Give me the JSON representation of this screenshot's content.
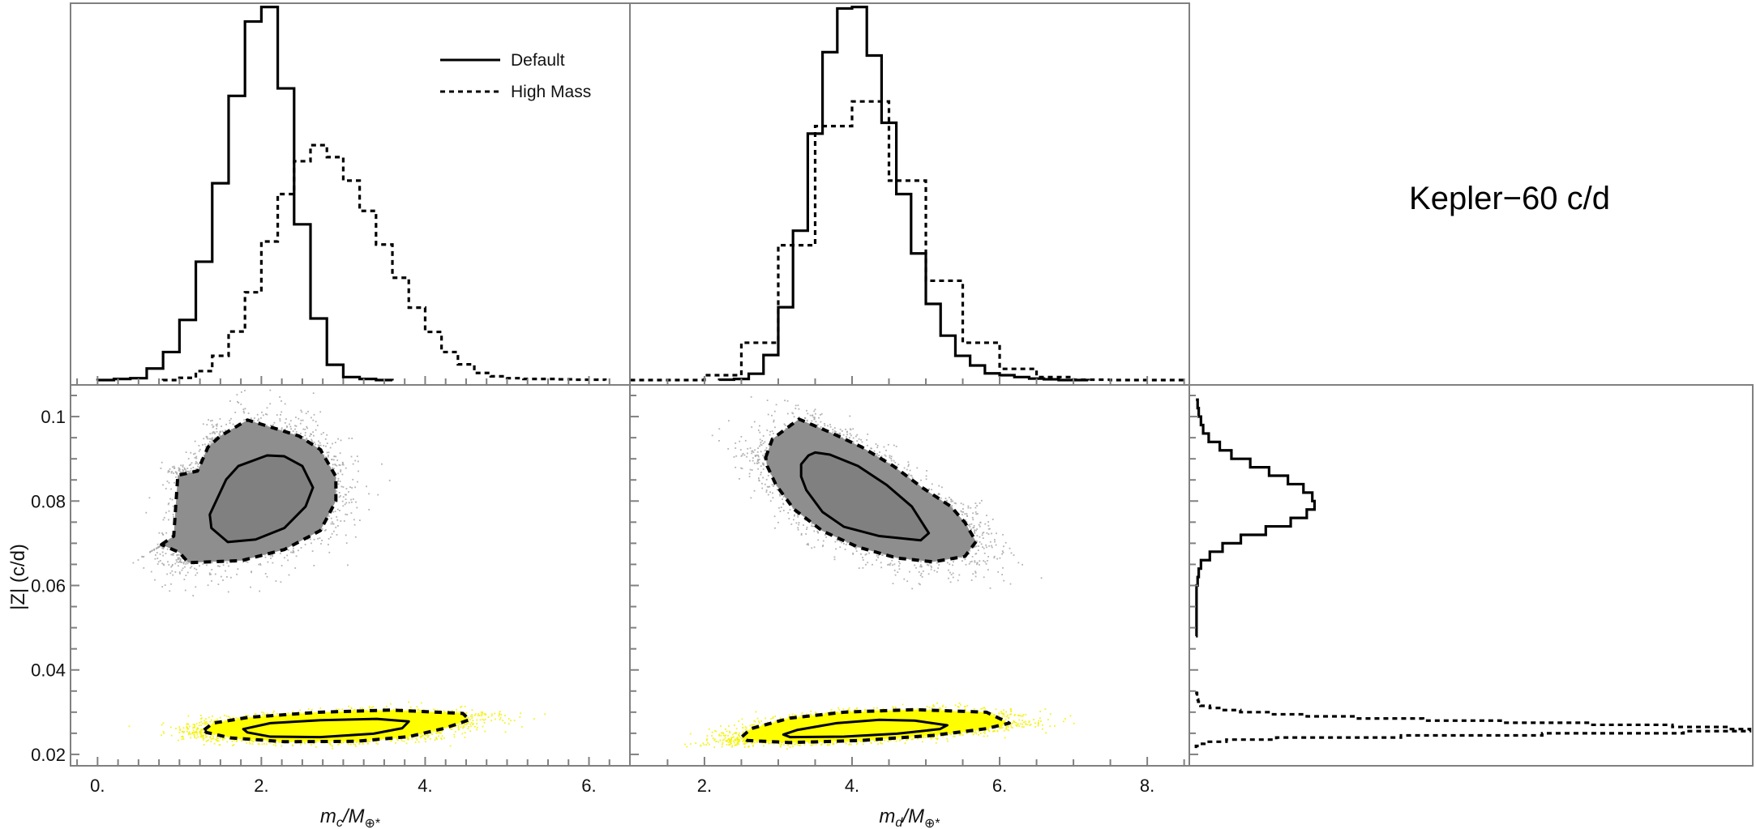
{
  "title": "Kepler−60 c/d",
  "legend": {
    "placement": "top-right of first histogram",
    "entries": [
      {
        "label": "Default",
        "style": "solid"
      },
      {
        "label": "High Mass",
        "style": "dotted"
      }
    ]
  },
  "axes": {
    "x_mc": {
      "parts": [
        "m",
        "c",
        "/M",
        "⊕*"
      ],
      "lim": [
        -0.33,
        6.5
      ],
      "ticks": [
        0,
        2,
        4,
        6
      ],
      "tick_labels": [
        "0.",
        "2.",
        "4.",
        "6."
      ],
      "minor_step": 0.25
    },
    "x_md": {
      "parts": [
        "m",
        "d",
        "/M",
        "⊕*"
      ],
      "lim": [
        0.99,
        8.57
      ],
      "ticks": [
        2,
        4,
        6,
        8
      ],
      "tick_labels": [
        "2.",
        "4.",
        "6.",
        "8."
      ],
      "minor_step": 0.5
    },
    "y_z": {
      "label": "|Z| (c/d)",
      "lim": [
        0.0173,
        0.1075
      ],
      "ticks": [
        0.02,
        0.04,
        0.06,
        0.08,
        0.1
      ],
      "tick_labels": [
        "0.02",
        "0.04",
        "0.06",
        "0.08",
        "0.1"
      ],
      "minor_step": 0.005
    },
    "hist_density_lim": [
      -0.012,
      1.01
    ],
    "z_hist_density_lim": [
      -0.012,
      1.005
    ]
  },
  "colors": {
    "default_cloud": "#808080",
    "high_mass_cloud": "#ffff00",
    "line": "#000000",
    "frame": "#808080"
  },
  "chart_data": [
    {
      "type": "histogram",
      "id": "mc-hist",
      "x_axis": "x_mc",
      "grid": false,
      "series": [
        {
          "name": "Default",
          "bin_start": 0.0,
          "bin_width": 0.2,
          "values": [
            0.001,
            0.004,
            0.006,
            0.032,
            0.076,
            0.162,
            0.318,
            0.528,
            0.762,
            0.961,
            1.0,
            0.782,
            0.418,
            0.166,
            0.042,
            0.009,
            0.004,
            0.001
          ]
        },
        {
          "name": "High Mass",
          "bin_start": 0.8,
          "bin_width": 0.2,
          "values": [
            0.001,
            0.007,
            0.025,
            0.066,
            0.131,
            0.236,
            0.372,
            0.499,
            0.587,
            0.63,
            0.598,
            0.535,
            0.454,
            0.364,
            0.275,
            0.195,
            0.13,
            0.076,
            0.043,
            0.02,
            0.011,
            0.006,
            0.004,
            0.004,
            0.003,
            0.002,
            0.002
          ]
        }
      ]
    },
    {
      "type": "histogram",
      "id": "md-hist",
      "x_axis": "x_md",
      "grid": false,
      "series": [
        {
          "name": "Default",
          "bin_start": 2.2,
          "bin_width": 0.2,
          "values": [
            0.002,
            0.004,
            0.018,
            0.068,
            0.196,
            0.401,
            0.661,
            0.879,
            0.996,
            1.0,
            0.87,
            0.69,
            0.499,
            0.34,
            0.205,
            0.12,
            0.066,
            0.04,
            0.019,
            0.014,
            0.009,
            0.005,
            0.003,
            0.001,
            0.001
          ]
        },
        {
          "name": "High Mass",
          "bin_start": 1.0,
          "bin_width": 0.5,
          "values": [
            0.001,
            0.001,
            0.014,
            0.101,
            0.362,
            0.681,
            0.747,
            0.535,
            0.267,
            0.101,
            0.031,
            0.009,
            0.002,
            0.001,
            0.001
          ]
        }
      ]
    },
    {
      "type": "scatter",
      "id": "mc-vs-z",
      "x_axis": "x_mc",
      "y_axis": "y_z",
      "grid": false,
      "series": [
        {
          "name": "Default",
          "color": "#808080",
          "inner_contour": [
            [
              1.37,
              0.0768
            ],
            [
              1.57,
              0.0851
            ],
            [
              1.72,
              0.0883
            ],
            [
              2.07,
              0.0908
            ],
            [
              2.28,
              0.0906
            ],
            [
              2.5,
              0.0883
            ],
            [
              2.63,
              0.0832
            ],
            [
              2.54,
              0.0787
            ],
            [
              2.28,
              0.0736
            ],
            [
              1.93,
              0.0709
            ],
            [
              1.59,
              0.0703
            ],
            [
              1.39,
              0.0736
            ]
          ],
          "outer_contour": [
            [
              0.78,
              0.0697
            ],
            [
              0.93,
              0.0717
            ],
            [
              0.98,
              0.0861
            ],
            [
              1.22,
              0.0871
            ],
            [
              1.35,
              0.0928
            ],
            [
              1.5,
              0.0954
            ],
            [
              1.83,
              0.0992
            ],
            [
              2.2,
              0.097
            ],
            [
              2.46,
              0.0954
            ],
            [
              2.72,
              0.0922
            ],
            [
              2.91,
              0.0858
            ],
            [
              2.91,
              0.08
            ],
            [
              2.72,
              0.073
            ],
            [
              2.28,
              0.0685
            ],
            [
              1.76,
              0.0659
            ],
            [
              1.11,
              0.0654
            ],
            [
              1.0,
              0.0678
            ]
          ]
        },
        {
          "name": "High Mass",
          "color": "#ffff00",
          "inner_contour": [
            [
              1.78,
              0.026
            ],
            [
              2.11,
              0.0274
            ],
            [
              2.72,
              0.0281
            ],
            [
              3.41,
              0.0284
            ],
            [
              3.8,
              0.0278
            ],
            [
              3.72,
              0.0262
            ],
            [
              3.37,
              0.0249
            ],
            [
              2.72,
              0.0241
            ],
            [
              2.11,
              0.0242
            ],
            [
              1.83,
              0.0252
            ]
          ],
          "outer_contour": [
            [
              1.3,
              0.0258
            ],
            [
              1.41,
              0.0274
            ],
            [
              1.85,
              0.0288
            ],
            [
              2.72,
              0.03
            ],
            [
              3.59,
              0.0305
            ],
            [
              4.46,
              0.0297
            ],
            [
              4.54,
              0.0282
            ],
            [
              4.24,
              0.0262
            ],
            [
              3.8,
              0.0242
            ],
            [
              3.15,
              0.0231
            ],
            [
              2.28,
              0.023
            ],
            [
              1.63,
              0.0239
            ],
            [
              1.33,
              0.0252
            ]
          ]
        }
      ]
    },
    {
      "type": "scatter",
      "id": "md-vs-z",
      "x_axis": "x_md",
      "y_axis": "y_z",
      "grid": false,
      "series": [
        {
          "name": "Default",
          "color": "#808080",
          "inner_contour": [
            [
              3.31,
              0.0887
            ],
            [
              3.41,
              0.0908
            ],
            [
              3.5,
              0.0915
            ],
            [
              3.7,
              0.091
            ],
            [
              4.08,
              0.0883
            ],
            [
              4.47,
              0.0838
            ],
            [
              4.81,
              0.0787
            ],
            [
              5.04,
              0.0724
            ],
            [
              4.93,
              0.0707
            ],
            [
              4.37,
              0.0717
            ],
            [
              3.89,
              0.0739
            ],
            [
              3.6,
              0.0774
            ],
            [
              3.38,
              0.0826
            ],
            [
              3.31,
              0.0858
            ]
          ],
          "outer_contour": [
            [
              2.83,
              0.0903
            ],
            [
              2.92,
              0.0947
            ],
            [
              3.28,
              0.0994
            ],
            [
              3.7,
              0.0963
            ],
            [
              4.13,
              0.0928
            ],
            [
              4.56,
              0.0883
            ],
            [
              4.95,
              0.0832
            ],
            [
              5.34,
              0.0787
            ],
            [
              5.53,
              0.0749
            ],
            [
              5.68,
              0.0704
            ],
            [
              5.53,
              0.0669
            ],
            [
              5.1,
              0.0656
            ],
            [
              4.61,
              0.0665
            ],
            [
              4.08,
              0.0691
            ],
            [
              3.6,
              0.0729
            ],
            [
              3.21,
              0.0781
            ],
            [
              2.97,
              0.0838
            ],
            [
              2.85,
              0.0883
            ]
          ]
        },
        {
          "name": "High Mass",
          "color": "#ffff00",
          "inner_contour": [
            [
              3.07,
              0.0247
            ],
            [
              3.26,
              0.0258
            ],
            [
              3.79,
              0.0274
            ],
            [
              4.37,
              0.0282
            ],
            [
              4.85,
              0.028
            ],
            [
              5.29,
              0.0269
            ],
            [
              5.19,
              0.026
            ],
            [
              4.61,
              0.0249
            ],
            [
              3.89,
              0.0242
            ],
            [
              3.16,
              0.0241
            ]
          ],
          "outer_contour": [
            [
              2.51,
              0.0242
            ],
            [
              2.63,
              0.0261
            ],
            [
              3.16,
              0.0286
            ],
            [
              3.89,
              0.03
            ],
            [
              4.85,
              0.0306
            ],
            [
              5.82,
              0.03
            ],
            [
              6.13,
              0.0274
            ],
            [
              5.82,
              0.0261
            ],
            [
              5.1,
              0.0245
            ],
            [
              4.13,
              0.0233
            ],
            [
              3.16,
              0.0228
            ],
            [
              2.58,
              0.0233
            ]
          ]
        }
      ]
    },
    {
      "type": "histogram",
      "id": "z-hist",
      "orientation": "horizontal",
      "y_axis": "y_z",
      "grid": false,
      "series": [
        {
          "name": "Default",
          "bin_start": 0.048,
          "bin_width": 0.002,
          "values": [
            0.001,
            0.001,
            0.001,
            0.001,
            0.001,
            0.001,
            0.003,
            0.005,
            0.009,
            0.025,
            0.048,
            0.081,
            0.126,
            0.171,
            0.2,
            0.214,
            0.21,
            0.194,
            0.166,
            0.132,
            0.098,
            0.064,
            0.043,
            0.023,
            0.013,
            0.009,
            0.005,
            0.003
          ]
        },
        {
          "name": "High Mass",
          "bin_start": 0.0215,
          "bin_width": 0.0005,
          "values": [
            0.0,
            0.005,
            0.015,
            0.055,
            0.145,
            0.37,
            0.625,
            0.88,
            1.0,
            0.96,
            0.86,
            0.71,
            0.55,
            0.41,
            0.29,
            0.2,
            0.134,
            0.08,
            0.045,
            0.025,
            0.008,
            0.005,
            0.004,
            0.003,
            0.002,
            0.002,
            0.001,
            0.001
          ]
        }
      ]
    }
  ]
}
